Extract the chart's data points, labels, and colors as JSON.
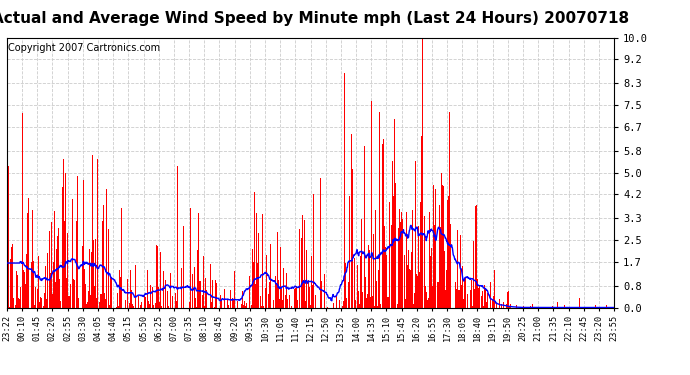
{
  "title": "Actual and Average Wind Speed by Minute mph (Last 24 Hours) 20070718",
  "copyright": "Copyright 2007 Cartronics.com",
  "yticks": [
    0.0,
    0.8,
    1.7,
    2.5,
    3.3,
    4.2,
    5.0,
    5.8,
    6.7,
    7.5,
    8.3,
    9.2,
    10.0
  ],
  "ylim": [
    0.0,
    10.0
  ],
  "bar_color": "#FF0000",
  "line_color": "#0000FF",
  "background_color": "#FFFFFF",
  "grid_color": "#CCCCCC",
  "title_fontsize": 11,
  "copyright_fontsize": 7,
  "xtick_labels": [
    "23:22",
    "00:10",
    "01:45",
    "02:20",
    "02:55",
    "03:30",
    "04:05",
    "04:40",
    "05:15",
    "05:50",
    "06:25",
    "07:00",
    "07:35",
    "08:10",
    "08:45",
    "09:20",
    "09:55",
    "10:30",
    "11:05",
    "11:40",
    "12:15",
    "12:50",
    "13:25",
    "14:00",
    "14:35",
    "15:10",
    "15:45",
    "16:20",
    "16:55",
    "17:30",
    "18:05",
    "18:40",
    "19:15",
    "19:50",
    "20:25",
    "21:00",
    "21:35",
    "22:10",
    "22:45",
    "23:20",
    "23:55"
  ],
  "n_minutes": 1440,
  "avg_window": 60,
  "seed": 12345
}
